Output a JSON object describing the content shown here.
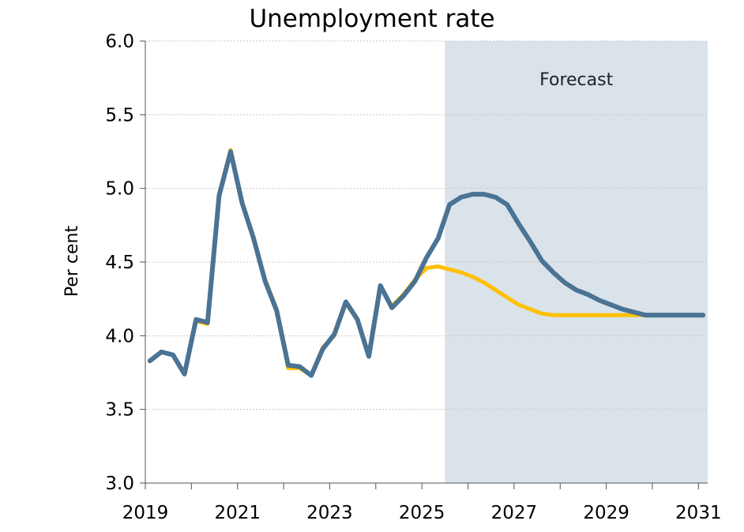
{
  "chart_data": {
    "type": "line",
    "title": "Unemployment rate",
    "ylabel": "Per cent",
    "xlabel": "",
    "ylim": [
      3.0,
      6.0
    ],
    "y_ticks": [
      "3.0",
      "3.5",
      "4.0",
      "4.5",
      "5.0",
      "5.5",
      "6.0"
    ],
    "xlim": [
      2019.0,
      2031.2
    ],
    "x_ticks": [
      "2019",
      "2021",
      "2023",
      "2025",
      "2027",
      "2029",
      "2031"
    ],
    "grid": "horizontal dotted",
    "forecast_region": {
      "label": "Forecast",
      "x_start": 2025.5,
      "x_end": 2031.2,
      "color": "#dae2ea"
    },
    "x": [
      2019.1,
      2019.35,
      2019.6,
      2019.85,
      2020.1,
      2020.35,
      2020.6,
      2020.85,
      2021.1,
      2021.35,
      2021.6,
      2021.85,
      2022.1,
      2022.35,
      2022.6,
      2022.85,
      2023.1,
      2023.35,
      2023.6,
      2023.85,
      2024.1,
      2024.35,
      2024.6,
      2024.85,
      2025.1,
      2025.35,
      2025.6,
      2025.85,
      2026.1,
      2026.35,
      2026.6,
      2026.85,
      2027.1,
      2027.35,
      2027.6,
      2027.85,
      2028.1,
      2028.35,
      2028.6,
      2028.85,
      2029.1,
      2029.35,
      2029.6,
      2029.85,
      2030.1,
      2030.35,
      2030.6,
      2030.85,
      2031.1
    ],
    "series": [
      {
        "color": "#ffc000",
        "values": [
          3.83,
          3.89,
          3.87,
          3.74,
          4.1,
          4.08,
          4.96,
          5.26,
          4.9,
          4.66,
          4.38,
          4.18,
          3.78,
          3.78,
          3.73,
          3.92,
          4.0,
          4.22,
          4.11,
          3.86,
          4.33,
          4.2,
          4.28,
          4.38,
          4.46,
          4.47,
          4.45,
          4.43,
          4.4,
          4.36,
          4.31,
          4.26,
          4.21,
          4.18,
          4.15,
          4.14,
          4.14,
          4.14,
          4.14,
          4.14,
          4.14,
          4.14,
          4.14,
          4.14,
          4.14,
          4.14,
          4.14,
          4.14,
          4.14
        ]
      },
      {
        "color": "#4a7394",
        "values": [
          3.83,
          3.89,
          3.87,
          3.74,
          4.11,
          4.09,
          4.95,
          5.25,
          4.9,
          4.66,
          4.37,
          4.17,
          3.8,
          3.79,
          3.73,
          3.91,
          4.01,
          4.23,
          4.11,
          3.86,
          4.34,
          4.19,
          4.27,
          4.37,
          4.53,
          4.66,
          4.89,
          4.94,
          4.96,
          4.96,
          4.94,
          4.89,
          4.76,
          4.64,
          4.51,
          4.43,
          4.36,
          4.31,
          4.28,
          4.24,
          4.21,
          4.18,
          4.16,
          4.14,
          4.14,
          4.14,
          4.14,
          4.14,
          4.14
        ]
      }
    ]
  }
}
